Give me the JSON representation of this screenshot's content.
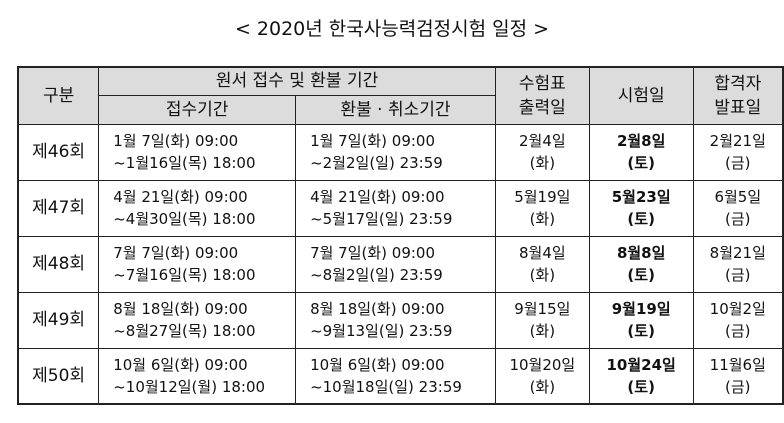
{
  "title": "< 2020년 한국사능력검정시험 일정 >",
  "headers": {
    "category": "구분",
    "application_period": "원서 접수 및 환불 기간",
    "receipt_period": "접수기간",
    "refund_period": "환불 · 취소기간",
    "ticket_print": [
      "수험표",
      "출력일"
    ],
    "exam_date": "시험일",
    "announce_date": [
      "합격자",
      "발표일"
    ]
  },
  "rows": [
    {
      "round": "제46회",
      "receipt": [
        "1월 7일(화) 09:00",
        "~1월16일(목) 18:00"
      ],
      "refund": [
        "1월 7일(화) 09:00",
        "~2월2일(일) 23:59"
      ],
      "ticket": [
        "2월4일",
        "(화)"
      ],
      "exam": [
        "2월8일",
        "(토)"
      ],
      "announce": [
        "2월21일",
        "(금)"
      ]
    },
    {
      "round": "제47회",
      "receipt": [
        "4월 21일(화) 09:00",
        "~4월30일(목) 18:00"
      ],
      "refund": [
        "4월 21일(화) 09:00",
        "~5월17일(일) 23:59"
      ],
      "ticket": [
        "5월19일",
        "(화)"
      ],
      "exam": [
        "5월23일",
        "(토)"
      ],
      "announce": [
        "6월5일",
        "(금)"
      ]
    },
    {
      "round": "제48회",
      "receipt": [
        "7월 7일(화) 09:00",
        "~7월16일(목) 18:00"
      ],
      "refund": [
        "7월 7일(화) 09:00",
        "~8월2일(일) 23:59"
      ],
      "ticket": [
        "8월4일",
        "(화)"
      ],
      "exam": [
        "8월8일",
        "(토)"
      ],
      "announce": [
        "8월21일",
        "(금)"
      ]
    },
    {
      "round": "제49회",
      "receipt": [
        "8월 18일(화) 09:00",
        "~8월27일(목) 18:00"
      ],
      "refund": [
        "8월 18일(화) 09:00",
        "~9월13일(일) 23:59"
      ],
      "ticket": [
        "9월15일",
        "(화)"
      ],
      "exam": [
        "9월19일",
        "(토)"
      ],
      "announce": [
        "10월2일",
        "(금)"
      ]
    },
    {
      "round": "제50회",
      "receipt": [
        "10월 6일(화) 09:00",
        "~10월12일(월) 18:00"
      ],
      "refund": [
        "10월 6일(화) 09:00",
        "~10월18일(일) 23:59"
      ],
      "ticket": [
        "10월20일",
        "(화)"
      ],
      "exam": [
        "10월24일",
        "(토)"
      ],
      "announce": [
        "11월6일",
        "(금)"
      ]
    }
  ]
}
